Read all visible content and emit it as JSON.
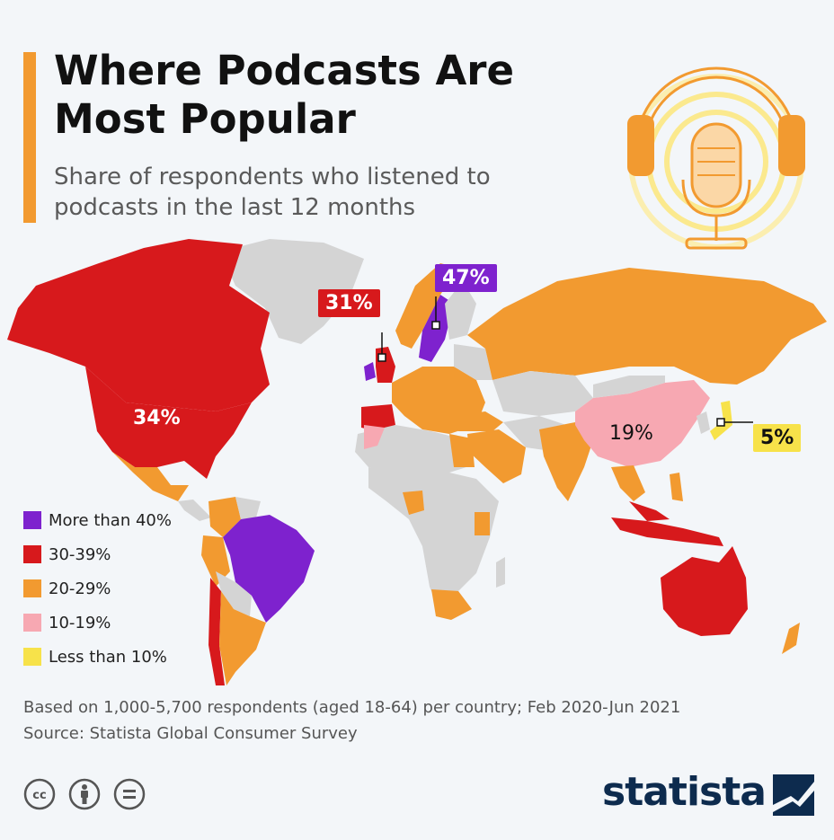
{
  "header": {
    "title": "Where Podcasts Are Most Popular",
    "subtitle": "Share of respondents who listened to podcasts in the last 12 months"
  },
  "colors": {
    "more_than_40": "#7e22ce",
    "range_30_39": "#d7191c",
    "range_20_29": "#f29a30",
    "range_10_19": "#f7a8b2",
    "less_than_10": "#f7e24a",
    "no_data": "#d4d4d4",
    "accent": "#f29a30",
    "brand": "#0d2b4e"
  },
  "legend": [
    {
      "label": "More than 40%",
      "color": "#7e22ce"
    },
    {
      "label": "30-39%",
      "color": "#d7191c"
    },
    {
      "label": "20-29%",
      "color": "#f29a30"
    },
    {
      "label": "10-19%",
      "color": "#f7a8b2"
    },
    {
      "label": "Less than 10%",
      "color": "#f7e24a"
    }
  ],
  "map_labels": {
    "us": "34%",
    "uk": "31%",
    "sweden": "47%",
    "china": "19%",
    "japan": "5%"
  },
  "footer": {
    "note": "Based on 1,000-5,700 respondents (aged 18-64) per country; Feb 2020-Jun 2021",
    "source": "Source: Statista Global Consumer Survey",
    "brand": "statista"
  },
  "icons": [
    "headphones-microphone-icon",
    "cc-icon",
    "person-icon",
    "equals-icon",
    "statista-logo-icon"
  ]
}
